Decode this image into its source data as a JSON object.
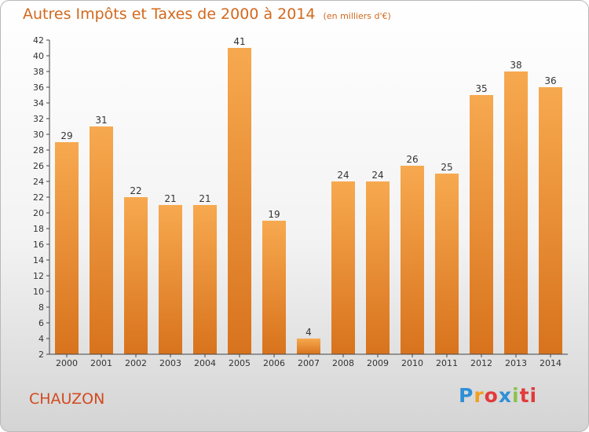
{
  "chart_data": {
    "type": "bar",
    "title": "Autres Impôts et Taxes de 2000 à 2014",
    "subtitle": "(en milliers d'€)",
    "categories": [
      "2000",
      "2001",
      "2002",
      "2003",
      "2004",
      "2005",
      "2006",
      "2007",
      "2008",
      "2009",
      "2010",
      "2011",
      "2012",
      "2013",
      "2014"
    ],
    "values": [
      29,
      31,
      22,
      21,
      21,
      41,
      19,
      4,
      24,
      24,
      26,
      25,
      35,
      38,
      36
    ],
    "ylim": [
      2,
      42
    ],
    "yticks": [
      2,
      4,
      6,
      8,
      10,
      12,
      14,
      16,
      18,
      20,
      22,
      24,
      26,
      28,
      30,
      32,
      34,
      36,
      38,
      40,
      42
    ],
    "grid": false,
    "bar_color_top": "#f7a94f",
    "bar_color_bottom": "#d8731d"
  },
  "commune": "CHAUZON",
  "logo": {
    "text_letters": [
      "P",
      "r",
      "o",
      "x",
      "i",
      "ti"
    ]
  }
}
